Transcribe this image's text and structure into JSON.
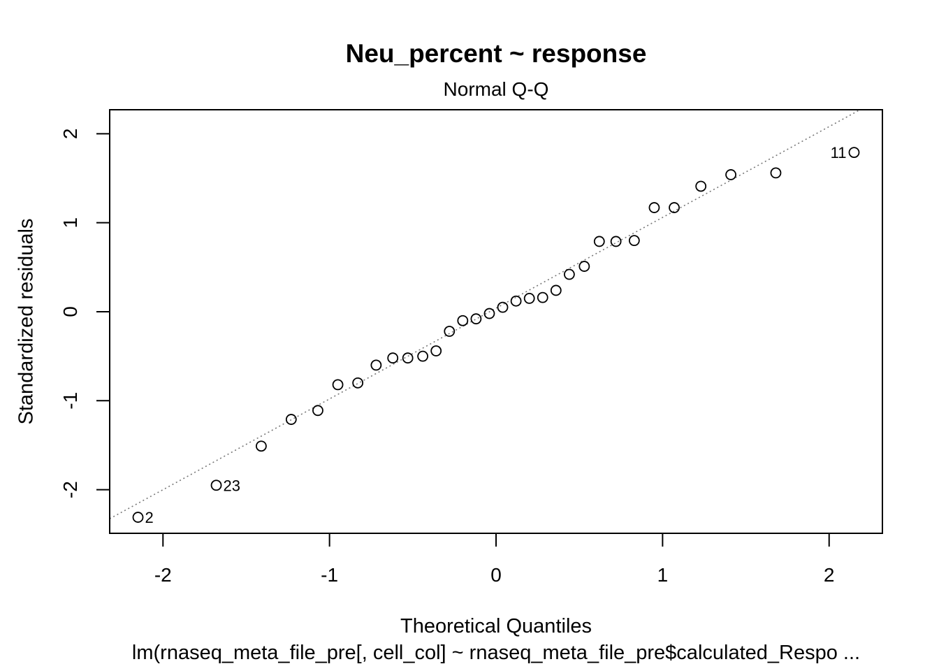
{
  "chart_data": {
    "type": "scatter",
    "title": "Neu_percent ~ response",
    "subtitle": "Normal Q-Q",
    "xlabel": "Theoretical Quantiles",
    "ylabel": "Standardized residuals",
    "caption": "lm(rnaseq_meta_file_pre[, cell_col] ~ rnaseq_meta_file_pre$calculated_Respo ...",
    "xlim": [
      -2.32,
      2.32
    ],
    "ylim": [
      -2.49,
      2.27
    ],
    "xticks": [
      -2,
      -1,
      0,
      1,
      2
    ],
    "yticks": [
      -2,
      -1,
      0,
      1,
      2
    ],
    "grid": false,
    "reference_line": {
      "style": "dotted",
      "color": "#777777",
      "intercept": 0.04,
      "slope": 1.02
    },
    "points": [
      {
        "x": -2.15,
        "y": -2.31,
        "label": "2"
      },
      {
        "x": -1.68,
        "y": -1.95,
        "label": "23"
      },
      {
        "x": -1.41,
        "y": -1.51
      },
      {
        "x": -1.23,
        "y": -1.21
      },
      {
        "x": -1.07,
        "y": -1.11
      },
      {
        "x": -0.95,
        "y": -0.82
      },
      {
        "x": -0.83,
        "y": -0.8
      },
      {
        "x": -0.72,
        "y": -0.6
      },
      {
        "x": -0.62,
        "y": -0.52
      },
      {
        "x": -0.53,
        "y": -0.52
      },
      {
        "x": -0.44,
        "y": -0.5
      },
      {
        "x": -0.36,
        "y": -0.44
      },
      {
        "x": -0.28,
        "y": -0.22
      },
      {
        "x": -0.2,
        "y": -0.1
      },
      {
        "x": -0.12,
        "y": -0.08
      },
      {
        "x": -0.04,
        "y": -0.02
      },
      {
        "x": 0.04,
        "y": 0.05
      },
      {
        "x": 0.12,
        "y": 0.12
      },
      {
        "x": 0.2,
        "y": 0.15
      },
      {
        "x": 0.28,
        "y": 0.16
      },
      {
        "x": 0.36,
        "y": 0.24
      },
      {
        "x": 0.44,
        "y": 0.42
      },
      {
        "x": 0.53,
        "y": 0.51
      },
      {
        "x": 0.62,
        "y": 0.79
      },
      {
        "x": 0.72,
        "y": 0.79
      },
      {
        "x": 0.83,
        "y": 0.8
      },
      {
        "x": 0.95,
        "y": 1.17
      },
      {
        "x": 1.07,
        "y": 1.17
      },
      {
        "x": 1.23,
        "y": 1.41
      },
      {
        "x": 1.41,
        "y": 1.54
      },
      {
        "x": 1.68,
        "y": 1.56
      },
      {
        "x": 2.15,
        "y": 1.79,
        "label": "11"
      }
    ]
  }
}
